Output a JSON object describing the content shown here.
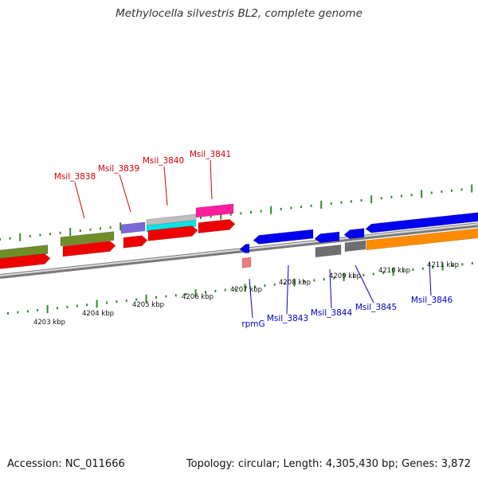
{
  "title": "Methylocella silvestris BL2, complete genome",
  "accession": "Accession: NC_011666",
  "summary": "Topology: circular; Length: 4,305,430 bp; Genes: 3,872",
  "colors": {
    "backbone": "#8c8c8c",
    "tick": "#2f8a2f",
    "top_label": "#d40000",
    "bottom_label": "#0000c0",
    "red": "#ee0000",
    "olive": "#6f8e2a",
    "purple": "#7b68d8",
    "silver": "#bdbdbd",
    "cyan": "#00e5e5",
    "magenta": "#ff1f9e",
    "blue": "#0000ee",
    "gray": "#6f6f6f",
    "orange": "#ff8c00",
    "pink": "#ee7b7b"
  },
  "kbp_labels": [
    "4203 kbp",
    "4204 kbp",
    "4205 kbp",
    "4206 kbp",
    "4207 kbp",
    "4208 kbp",
    "4209 kbp",
    "4210 kbp",
    "4211 kbp"
  ],
  "top_genes": [
    "Msil_3838",
    "Msil_3839",
    "Msil_3840",
    "Msil_3841"
  ],
  "bottom_genes": [
    "rpmG",
    "Msil_3843",
    "Msil_3844",
    "Msil_3845",
    "Msil_3846"
  ]
}
